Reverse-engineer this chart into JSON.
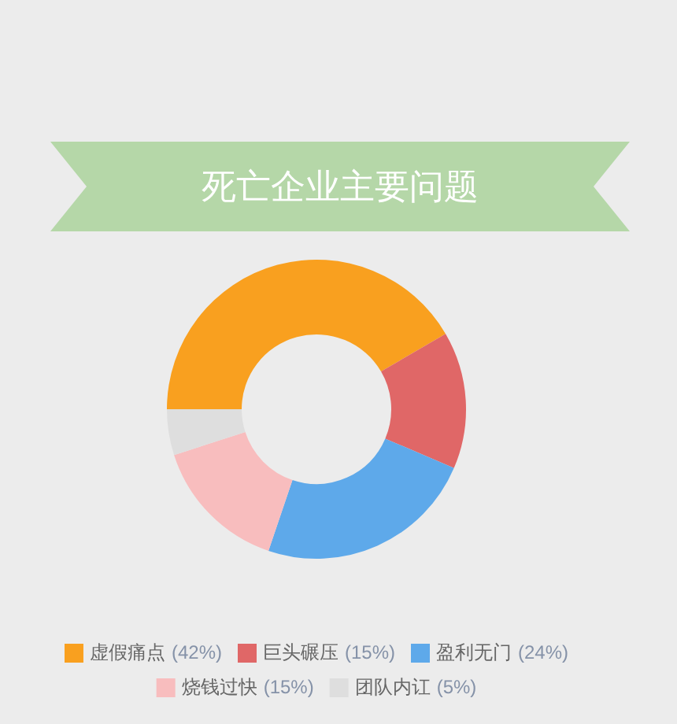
{
  "chart_data": {
    "type": "donut",
    "title": "死亡企业主要问题",
    "categories": [
      "虚假痛点",
      "巨头碾压",
      "盈利无门",
      "烧钱过快",
      "团队内讧"
    ],
    "values": [
      42,
      15,
      24,
      15,
      5
    ],
    "value_labels": [
      "(42%)",
      "(15%)",
      "(24%)",
      "(15%)",
      "(5%)"
    ],
    "colors": [
      "#f9a01f",
      "#e06767",
      "#5ea9ea",
      "#f8bdbe",
      "#dedede"
    ],
    "legend": "bottom"
  }
}
